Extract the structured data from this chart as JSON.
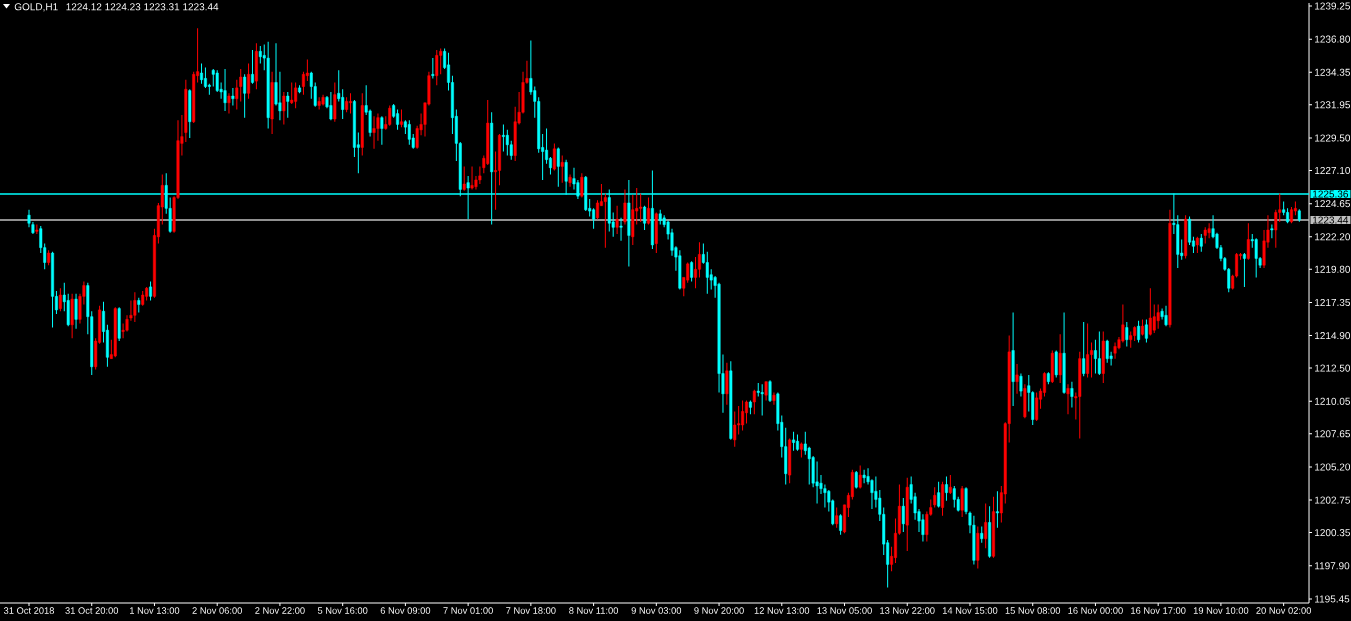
{
  "chart_data": {
    "type": "candlestick",
    "title": "GOLD,H1",
    "subtitle": "1224.12 1224.23 1223.31 1223.44",
    "categories": [
      "31 Oct 2018",
      null,
      null,
      null,
      null,
      null,
      null,
      null,
      null,
      null,
      null,
      null,
      null,
      null,
      null,
      null,
      "31 Oct 20:00",
      null,
      null,
      null,
      null,
      null,
      null,
      null,
      null,
      null,
      null,
      null,
      null,
      null,
      null,
      null,
      "1 Nov 13:00",
      null,
      null,
      null,
      null,
      null,
      null,
      null,
      null,
      null,
      null,
      null,
      null,
      null,
      null,
      null,
      "2 Nov 06:00",
      null,
      null,
      null,
      null,
      null,
      null,
      null,
      null,
      null,
      null,
      null,
      null,
      null,
      null,
      null,
      "2 Nov 22:00",
      null,
      null,
      null,
      null,
      null,
      null,
      null,
      null,
      null,
      null,
      null,
      null,
      null,
      null,
      null,
      "5 Nov 16:00",
      null,
      null,
      null,
      null,
      null,
      null,
      null,
      null,
      null,
      null,
      null,
      null,
      null,
      null,
      null,
      "6 Nov 09:00",
      null,
      null,
      null,
      null,
      null,
      null,
      null,
      null,
      null,
      null,
      null,
      null,
      null,
      null,
      null,
      "7 Nov 01:00",
      null,
      null,
      null,
      null,
      null,
      null,
      null,
      null,
      null,
      null,
      null,
      null,
      null,
      null,
      null,
      "7 Nov 18:00",
      null,
      null,
      null,
      null,
      null,
      null,
      null,
      null,
      null,
      null,
      null,
      null,
      null,
      null,
      null,
      "8 Nov 11:00",
      null,
      null,
      null,
      null,
      null,
      null,
      null,
      null,
      null,
      null,
      null,
      null,
      null,
      null,
      null,
      "9 Nov 03:00",
      null,
      null,
      null,
      null,
      null,
      null,
      null,
      null,
      null,
      null,
      null,
      null,
      null,
      null,
      null,
      "9 Nov 20:00",
      null,
      null,
      null,
      null,
      null,
      null,
      null,
      null,
      null,
      null,
      null,
      null,
      null,
      null,
      null,
      "12 Nov 13:00",
      null,
      null,
      null,
      null,
      null,
      null,
      null,
      null,
      null,
      null,
      null,
      null,
      null,
      null,
      null,
      "13 Nov 05:00",
      null,
      null,
      null,
      null,
      null,
      null,
      null,
      null,
      null,
      null,
      null,
      null,
      null,
      null,
      null,
      "13 Nov 22:00",
      null,
      null,
      null,
      null,
      null,
      null,
      null,
      null,
      null,
      null,
      null,
      null,
      null,
      null,
      null,
      "14 Nov 15:00",
      null,
      null,
      null,
      null,
      null,
      null,
      null,
      null,
      null,
      null,
      null,
      null,
      null,
      null,
      null,
      "15 Nov 08:00",
      null,
      null,
      null,
      null,
      null,
      null,
      null,
      null,
      null,
      null,
      null,
      null,
      null,
      null,
      null,
      "16 Nov 00:00",
      null,
      null,
      null,
      null,
      null,
      null,
      null,
      null,
      null,
      null,
      null,
      null,
      null,
      null,
      null,
      "16 Nov 17:00",
      null,
      null,
      null,
      null,
      null,
      null,
      null,
      null,
      null,
      null,
      null,
      null,
      null,
      null,
      null,
      "19 Nov 10:00",
      null,
      null,
      null,
      null,
      null,
      null,
      null,
      null,
      null,
      null,
      null,
      null,
      null,
      null,
      null,
      "20 Nov 02:00",
      null,
      null,
      null,
      null
    ],
    "ohlc": [
      [
        1223.8,
        1224.2,
        1222.9,
        1223.2
      ],
      [
        1223.1,
        1223.3,
        1222.4,
        1222.5
      ],
      [
        1222.6,
        1223.1,
        1222.4,
        1222.7
      ],
      [
        1222.8,
        1223.0,
        1221.0,
        1221.4
      ],
      [
        1221.4,
        1221.7,
        1219.8,
        1220.3
      ],
      [
        1220.3,
        1221.2,
        1220.1,
        1221.0
      ],
      [
        1221.0,
        1221.1,
        1215.5,
        1217.8
      ],
      [
        1217.8,
        1218.2,
        1216.5,
        1216.8
      ],
      [
        1216.9,
        1218.4,
        1216.7,
        1217.9
      ],
      [
        1217.9,
        1218.8,
        1216.7,
        1217.4
      ],
      [
        1217.5,
        1218.0,
        1215.6,
        1215.7
      ],
      [
        1215.7,
        1218.0,
        1214.7,
        1217.6
      ],
      [
        1217.6,
        1218.0,
        1215.4,
        1216.1
      ],
      [
        1216.1,
        1218.0,
        1215.8,
        1217.8
      ],
      [
        1217.8,
        1218.9,
        1217.2,
        1218.6
      ],
      [
        1218.6,
        1218.8,
        1215.0,
        1216.3
      ],
      [
        1216.3,
        1216.7,
        1212.0,
        1212.6
      ],
      [
        1212.6,
        1214.7,
        1212.4,
        1214.5
      ],
      [
        1214.4,
        1217.1,
        1214.3,
        1216.8
      ],
      [
        1216.7,
        1217.4,
        1214.4,
        1215.2
      ],
      [
        1215.3,
        1215.7,
        1212.6,
        1213.3
      ],
      [
        1213.2,
        1214.6,
        1213.2,
        1213.5
      ],
      [
        1213.4,
        1217.0,
        1213.3,
        1216.9
      ],
      [
        1216.9,
        1217.0,
        1214.5,
        1214.7
      ],
      [
        1215.2,
        1215.8,
        1214.7,
        1215.3
      ],
      [
        1215.3,
        1216.4,
        1215.2,
        1216.1
      ],
      [
        1216.2,
        1217.5,
        1216.0,
        1216.4
      ],
      [
        1216.4,
        1218.1,
        1215.9,
        1217.5
      ],
      [
        1217.5,
        1217.7,
        1216.6,
        1217.2
      ],
      [
        1217.2,
        1218.2,
        1217.1,
        1217.9
      ],
      [
        1217.8,
        1218.5,
        1217.5,
        1218.4
      ],
      [
        1218.5,
        1218.9,
        1217.5,
        1217.8
      ],
      [
        1217.8,
        1222.8,
        1217.7,
        1222.3
      ],
      [
        1222.2,
        1224.7,
        1221.7,
        1224.5
      ],
      [
        1224.4,
        1226.8,
        1223.1,
        1226.0
      ],
      [
        1226.0,
        1226.9,
        1223.9,
        1224.3
      ],
      [
        1224.3,
        1225.1,
        1222.5,
        1222.6
      ],
      [
        1222.6,
        1225.2,
        1222.5,
        1225.1
      ],
      [
        1225.1,
        1230.8,
        1225.0,
        1229.3
      ],
      [
        1229.1,
        1231.2,
        1228.2,
        1229.6
      ],
      [
        1229.9,
        1233.8,
        1229.2,
        1233.1
      ],
      [
        1233.0,
        1233.1,
        1229.5,
        1230.7
      ],
      [
        1230.7,
        1234.4,
        1230.6,
        1234.2
      ],
      [
        1234.1,
        1237.6,
        1233.6,
        1234.4
      ],
      [
        1234.3,
        1235.0,
        1233.5,
        1233.8
      ],
      [
        1233.9,
        1234.7,
        1233.2,
        1233.3
      ],
      [
        1233.4,
        1233.5,
        1232.7,
        1233.3
      ],
      [
        1234.5,
        1234.6,
        1233.3,
        1234.2
      ],
      [
        1234.3,
        1234.5,
        1232.9,
        1233.0
      ],
      [
        1233.1,
        1233.6,
        1232.4,
        1232.9
      ],
      [
        1233.0,
        1234.6,
        1231.5,
        1232.1
      ],
      [
        1232.1,
        1232.8,
        1231.3,
        1232.6
      ],
      [
        1232.6,
        1233.2,
        1231.9,
        1232.4
      ],
      [
        1232.4,
        1233.8,
        1231.6,
        1233.2
      ],
      [
        1233.3,
        1234.6,
        1232.2,
        1234.0
      ],
      [
        1234.0,
        1234.2,
        1231.0,
        1232.8
      ],
      [
        1232.8,
        1235.0,
        1232.4,
        1234.2
      ],
      [
        1234.2,
        1236.0,
        1233.5,
        1233.6
      ],
      [
        1233.7,
        1236.5,
        1233.1,
        1235.9
      ],
      [
        1235.9,
        1236.3,
        1235.0,
        1235.5
      ],
      [
        1235.6,
        1236.4,
        1234.5,
        1235.4
      ],
      [
        1235.4,
        1236.6,
        1230.2,
        1231.0
      ],
      [
        1230.9,
        1234.4,
        1229.8,
        1233.6
      ],
      [
        1233.6,
        1236.5,
        1231.9,
        1232.0
      ],
      [
        1232.1,
        1234.4,
        1230.8,
        1231.5
      ],
      [
        1231.5,
        1232.9,
        1230.5,
        1232.6
      ],
      [
        1232.6,
        1232.9,
        1231.0,
        1232.2
      ],
      [
        1232.1,
        1233.6,
        1232.0,
        1232.3
      ],
      [
        1232.2,
        1233.6,
        1231.7,
        1233.2
      ],
      [
        1233.2,
        1233.4,
        1232.8,
        1232.9
      ],
      [
        1233.3,
        1234.4,
        1232.7,
        1234.2
      ],
      [
        1234.1,
        1235.3,
        1233.7,
        1234.3
      ],
      [
        1234.3,
        1234.4,
        1232.4,
        1233.3
      ],
      [
        1233.3,
        1233.6,
        1231.8,
        1231.9
      ],
      [
        1231.9,
        1232.5,
        1231.6,
        1232.2
      ],
      [
        1232.0,
        1232.7,
        1231.9,
        1232.5
      ],
      [
        1232.5,
        1232.6,
        1231.7,
        1231.8
      ],
      [
        1231.9,
        1232.9,
        1230.8,
        1230.9
      ],
      [
        1230.9,
        1233.6,
        1230.7,
        1232.7
      ],
      [
        1232.8,
        1234.5,
        1232.2,
        1232.4
      ],
      [
        1232.5,
        1233.1,
        1230.9,
        1231.6
      ],
      [
        1231.6,
        1232.5,
        1231.4,
        1232.2
      ],
      [
        1232.1,
        1232.8,
        1231.3,
        1232.2
      ],
      [
        1232.2,
        1232.3,
        1228.1,
        1228.8
      ],
      [
        1229.0,
        1229.9,
        1226.9,
        1228.8
      ],
      [
        1228.8,
        1232.8,
        1228.2,
        1231.9
      ],
      [
        1231.9,
        1233.4,
        1231.2,
        1231.4
      ],
      [
        1231.5,
        1231.6,
        1229.6,
        1229.9
      ],
      [
        1229.9,
        1231.1,
        1228.7,
        1230.2
      ],
      [
        1230.2,
        1231.3,
        1229.3,
        1231.0
      ],
      [
        1231.0,
        1231.1,
        1229.0,
        1230.2
      ],
      [
        1230.2,
        1231.1,
        1230.1,
        1230.5
      ],
      [
        1230.5,
        1231.9,
        1230.4,
        1231.7
      ],
      [
        1231.9,
        1232.0,
        1231.0,
        1231.1
      ],
      [
        1231.3,
        1231.6,
        1230.1,
        1230.5
      ],
      [
        1230.5,
        1231.6,
        1230.3,
        1230.7
      ],
      [
        1230.7,
        1230.8,
        1229.8,
        1230.3
      ],
      [
        1230.5,
        1230.8,
        1229.0,
        1229.4
      ],
      [
        1229.5,
        1229.8,
        1228.7,
        1228.8
      ],
      [
        1228.8,
        1230.4,
        1228.7,
        1230.2
      ],
      [
        1230.1,
        1231.3,
        1229.7,
        1230.5
      ],
      [
        1230.5,
        1232.1,
        1229.6,
        1232.1
      ],
      [
        1232.0,
        1234.4,
        1231.9,
        1234.1
      ],
      [
        1234.2,
        1235.4,
        1233.9,
        1234.1
      ],
      [
        1234.1,
        1236.0,
        1233.4,
        1235.6
      ],
      [
        1235.6,
        1236.1,
        1234.2,
        1235.9
      ],
      [
        1235.9,
        1236.1,
        1234.6,
        1234.7
      ],
      [
        1234.9,
        1235.8,
        1233.0,
        1233.6
      ],
      [
        1233.6,
        1234.1,
        1229.8,
        1231.0
      ],
      [
        1231.1,
        1231.6,
        1227.8,
        1229.1
      ],
      [
        1229.1,
        1229.2,
        1225.2,
        1225.7
      ],
      [
        1225.7,
        1227.4,
        1225.6,
        1226.1
      ],
      [
        1226.2,
        1226.7,
        1223.5,
        1225.8
      ],
      [
        1225.8,
        1227.4,
        1225.7,
        1226.0
      ],
      [
        1225.9,
        1226.7,
        1225.7,
        1226.4
      ],
      [
        1226.4,
        1227.4,
        1226.1,
        1226.7
      ],
      [
        1227.3,
        1228.2,
        1226.9,
        1228.0
      ],
      [
        1227.6,
        1232.3,
        1227.5,
        1230.6
      ],
      [
        1230.6,
        1231.4,
        1223.1,
        1227.0
      ],
      [
        1227.0,
        1228.5,
        1224.2,
        1227.1
      ],
      [
        1227.1,
        1229.8,
        1226.0,
        1229.7
      ],
      [
        1229.7,
        1230.5,
        1228.5,
        1229.6
      ],
      [
        1229.7,
        1230.1,
        1228.2,
        1229.0
      ],
      [
        1229.0,
        1229.3,
        1227.9,
        1228.2
      ],
      [
        1228.2,
        1231.8,
        1227.8,
        1230.7
      ],
      [
        1230.6,
        1232.9,
        1230.5,
        1231.4
      ],
      [
        1231.4,
        1234.4,
        1231.3,
        1233.6
      ],
      [
        1233.6,
        1235.2,
        1233.5,
        1233.9
      ],
      [
        1233.9,
        1236.7,
        1232.7,
        1232.9
      ],
      [
        1233.0,
        1233.3,
        1231.0,
        1232.2
      ],
      [
        1232.2,
        1232.5,
        1228.4,
        1228.7
      ],
      [
        1228.8,
        1229.8,
        1226.4,
        1228.5
      ],
      [
        1228.6,
        1230.2,
        1227.6,
        1227.9
      ],
      [
        1228.0,
        1228.1,
        1226.8,
        1227.3
      ],
      [
        1227.2,
        1229.1,
        1227.1,
        1228.7
      ],
      [
        1228.7,
        1228.8,
        1225.9,
        1227.4
      ],
      [
        1227.4,
        1228.2,
        1226.2,
        1227.7
      ],
      [
        1227.7,
        1227.9,
        1225.3,
        1226.3
      ],
      [
        1226.2,
        1226.8,
        1225.9,
        1226.6
      ],
      [
        1226.5,
        1227.3,
        1225.7,
        1226.1
      ],
      [
        1226.2,
        1226.4,
        1225.0,
        1225.2
      ],
      [
        1225.2,
        1226.9,
        1225.1,
        1226.6
      ],
      [
        1226.6,
        1226.7,
        1224.1,
        1224.2
      ],
      [
        1224.3,
        1225.0,
        1223.7,
        1224.1
      ],
      [
        1224.2,
        1224.3,
        1222.8,
        1223.5
      ],
      [
        1223.6,
        1224.9,
        1223.5,
        1224.7
      ],
      [
        1224.5,
        1226.1,
        1224.5,
        1224.8
      ],
      [
        1224.8,
        1225.4,
        1221.4,
        1225.1
      ],
      [
        1225.1,
        1225.7,
        1222.6,
        1223.2
      ],
      [
        1223.3,
        1224.0,
        1222.2,
        1222.9
      ],
      [
        1222.9,
        1224.5,
        1222.4,
        1223.5
      ],
      [
        1223.0,
        1223.6,
        1221.9,
        1222.9
      ],
      [
        1223.3,
        1225.7,
        1223.1,
        1224.7
      ],
      [
        1224.7,
        1226.4,
        1220.0,
        1222.3
      ],
      [
        1222.2,
        1225.3,
        1221.6,
        1224.2
      ],
      [
        1224.1,
        1225.8,
        1223.1,
        1224.3
      ],
      [
        1224.3,
        1225.4,
        1223.3,
        1224.4
      ],
      [
        1224.4,
        1224.5,
        1222.7,
        1223.2
      ],
      [
        1223.2,
        1225.1,
        1223.1,
        1224.3
      ],
      [
        1224.3,
        1227.1,
        1221.3,
        1221.6
      ],
      [
        1221.7,
        1224.0,
        1221.0,
        1223.9
      ],
      [
        1223.9,
        1224.2,
        1223.1,
        1223.4
      ],
      [
        1223.6,
        1223.8,
        1222.9,
        1223.1
      ],
      [
        1223.3,
        1223.4,
        1222.0,
        1222.4
      ],
      [
        1222.5,
        1222.8,
        1220.8,
        1221.2
      ],
      [
        1221.4,
        1221.5,
        1219.7,
        1220.7
      ],
      [
        1220.8,
        1221.2,
        1218.3,
        1218.4
      ],
      [
        1218.4,
        1219.2,
        1217.8,
        1219.2
      ],
      [
        1219.0,
        1220.3,
        1218.8,
        1220.2
      ],
      [
        1220.3,
        1220.4,
        1218.9,
        1219.2
      ],
      [
        1219.2,
        1220.7,
        1218.4,
        1219.8
      ],
      [
        1219.8,
        1221.8,
        1219.2,
        1220.9
      ],
      [
        1220.9,
        1221.7,
        1220.2,
        1220.3
      ],
      [
        1220.3,
        1221.1,
        1218.0,
        1219.2
      ],
      [
        1219.4,
        1219.8,
        1218.3,
        1219.0
      ],
      [
        1219.2,
        1219.3,
        1217.7,
        1218.6
      ],
      [
        1218.7,
        1218.8,
        1210.7,
        1212.1
      ],
      [
        1212.1,
        1213.5,
        1209.2,
        1210.6
      ],
      [
        1210.6,
        1212.9,
        1209.8,
        1212.3
      ],
      [
        1212.3,
        1213.0,
        1207.2,
        1207.3
      ],
      [
        1207.2,
        1209.3,
        1206.7,
        1208.3
      ],
      [
        1208.3,
        1209.7,
        1207.6,
        1208.4
      ],
      [
        1208.3,
        1210.1,
        1207.9,
        1209.3
      ],
      [
        1209.2,
        1210.1,
        1208.4,
        1210.0
      ],
      [
        1210.0,
        1210.1,
        1209.1,
        1209.6
      ],
      [
        1210.0,
        1210.9,
        1209.1,
        1210.8
      ],
      [
        1210.8,
        1211.4,
        1210.4,
        1210.7
      ],
      [
        1210.7,
        1211.3,
        1209.0,
        1210.6
      ],
      [
        1210.5,
        1211.5,
        1210.1,
        1211.5
      ],
      [
        1211.5,
        1211.6,
        1210.0,
        1210.1
      ],
      [
        1210.1,
        1210.7,
        1209.8,
        1210.5
      ],
      [
        1210.6,
        1210.7,
        1207.9,
        1208.4
      ],
      [
        1208.5,
        1209.0,
        1205.9,
        1206.7
      ],
      [
        1206.7,
        1208.1,
        1203.9,
        1204.7
      ],
      [
        1204.6,
        1207.3,
        1204.0,
        1207.2
      ],
      [
        1207.2,
        1207.8,
        1206.4,
        1207.0
      ],
      [
        1207.1,
        1207.6,
        1206.4,
        1206.5
      ],
      [
        1206.5,
        1207.0,
        1205.9,
        1206.9
      ],
      [
        1206.9,
        1207.8,
        1206.1,
        1206.4
      ],
      [
        1206.6,
        1206.7,
        1203.9,
        1205.8
      ],
      [
        1205.9,
        1206.0,
        1203.7,
        1204.0
      ],
      [
        1204.1,
        1205.6,
        1202.5,
        1203.8
      ],
      [
        1204.0,
        1204.6,
        1203.2,
        1203.6
      ],
      [
        1203.6,
        1203.9,
        1202.2,
        1203.3
      ],
      [
        1203.4,
        1203.5,
        1201.9,
        1202.6
      ],
      [
        1202.7,
        1202.8,
        1200.9,
        1201.0
      ],
      [
        1201.0,
        1202.2,
        1200.7,
        1201.6
      ],
      [
        1201.6,
        1201.7,
        1200.2,
        1200.5
      ],
      [
        1200.4,
        1202.4,
        1200.3,
        1202.4
      ],
      [
        1202.2,
        1203.3,
        1201.5,
        1203.1
      ],
      [
        1203.0,
        1205.0,
        1202.8,
        1204.8
      ],
      [
        1204.8,
        1204.9,
        1203.6,
        1203.7
      ],
      [
        1203.7,
        1205.3,
        1203.6,
        1204.6
      ],
      [
        1204.6,
        1205.0,
        1204.0,
        1204.4
      ],
      [
        1204.5,
        1205.1,
        1203.9,
        1204.1
      ],
      [
        1204.2,
        1204.3,
        1202.1,
        1203.3
      ],
      [
        1203.4,
        1204.5,
        1202.2,
        1202.8
      ],
      [
        1202.9,
        1203.5,
        1201.2,
        1201.7
      ],
      [
        1201.7,
        1202.2,
        1198.7,
        1199.5
      ],
      [
        1199.6,
        1199.8,
        1196.3,
        1198.0
      ],
      [
        1198.0,
        1199.3,
        1197.5,
        1198.6
      ],
      [
        1198.5,
        1201.4,
        1198.1,
        1200.3
      ],
      [
        1200.3,
        1203.9,
        1200.2,
        1202.3
      ],
      [
        1202.3,
        1202.9,
        1200.4,
        1201.0
      ],
      [
        1200.9,
        1204.4,
        1199.0,
        1203.7
      ],
      [
        1203.9,
        1204.5,
        1202.5,
        1202.8
      ],
      [
        1203.0,
        1203.3,
        1201.3,
        1201.8
      ],
      [
        1201.9,
        1202.1,
        1200.4,
        1201.2
      ],
      [
        1201.3,
        1201.7,
        1199.7,
        1200.2
      ],
      [
        1200.2,
        1201.9,
        1199.7,
        1201.7
      ],
      [
        1201.7,
        1202.8,
        1201.6,
        1202.2
      ],
      [
        1202.4,
        1203.7,
        1202.2,
        1203.1
      ],
      [
        1203.3,
        1204.1,
        1202.2,
        1202.3
      ],
      [
        1202.2,
        1204.1,
        1201.6,
        1203.9
      ],
      [
        1203.9,
        1204.5,
        1202.7,
        1203.3
      ],
      [
        1203.3,
        1204.6,
        1203.2,
        1203.7
      ],
      [
        1203.6,
        1203.8,
        1202.2,
        1202.8
      ],
      [
        1202.8,
        1203.0,
        1201.9,
        1202.0
      ],
      [
        1202.0,
        1203.8,
        1201.5,
        1203.6
      ],
      [
        1203.6,
        1203.7,
        1201.7,
        1201.9
      ],
      [
        1201.8,
        1201.9,
        1200.3,
        1200.9
      ],
      [
        1200.9,
        1201.6,
        1198.0,
        1198.3
      ],
      [
        1198.3,
        1200.8,
        1197.7,
        1200.3
      ],
      [
        1200.3,
        1200.8,
        1199.6,
        1199.9
      ],
      [
        1199.9,
        1202.5,
        1199.2,
        1201.1
      ],
      [
        1201.1,
        1202.3,
        1198.5,
        1198.6
      ],
      [
        1198.6,
        1203.0,
        1198.5,
        1201.9
      ],
      [
        1201.9,
        1203.4,
        1200.7,
        1201.8
      ],
      [
        1201.8,
        1203.8,
        1201.1,
        1203.3
      ],
      [
        1203.2,
        1208.5,
        1202.5,
        1208.4
      ],
      [
        1208.4,
        1214.9,
        1207.0,
        1213.7
      ],
      [
        1213.8,
        1216.6,
        1209.7,
        1211.5
      ],
      [
        1211.5,
        1212.8,
        1210.6,
        1212.0
      ],
      [
        1211.9,
        1212.1,
        1210.4,
        1210.8
      ],
      [
        1208.9,
        1211.3,
        1208.8,
        1211.0
      ],
      [
        1211.2,
        1212.0,
        1209.3,
        1210.7
      ],
      [
        1210.7,
        1210.8,
        1208.3,
        1208.7
      ],
      [
        1208.7,
        1210.7,
        1208.6,
        1210.3
      ],
      [
        1210.2,
        1211.0,
        1209.5,
        1210.8
      ],
      [
        1210.7,
        1212.2,
        1210.4,
        1212.1
      ],
      [
        1212.1,
        1212.2,
        1211.3,
        1211.5
      ],
      [
        1211.5,
        1213.8,
        1211.4,
        1213.6
      ],
      [
        1213.7,
        1213.8,
        1211.8,
        1212.0
      ],
      [
        1212.0,
        1215.0,
        1211.4,
        1213.6
      ],
      [
        1213.6,
        1216.6,
        1210.6,
        1210.7
      ],
      [
        1210.6,
        1211.3,
        1209.1,
        1211.0
      ],
      [
        1211.0,
        1211.5,
        1209.6,
        1210.4
      ],
      [
        1210.3,
        1210.7,
        1208.7,
        1210.4
      ],
      [
        1210.4,
        1213.7,
        1207.3,
        1213.2
      ],
      [
        1213.2,
        1215.9,
        1211.9,
        1212.1
      ],
      [
        1212.1,
        1215.8,
        1211.8,
        1213.5
      ],
      [
        1213.5,
        1214.4,
        1211.8,
        1213.8
      ],
      [
        1213.8,
        1214.6,
        1212.1,
        1213.2
      ],
      [
        1213.2,
        1215.2,
        1212.0,
        1212.1
      ],
      [
        1212.1,
        1215.2,
        1211.4,
        1214.5
      ],
      [
        1214.5,
        1214.6,
        1212.9,
        1213.2
      ],
      [
        1213.4,
        1213.7,
        1212.7,
        1213.2
      ],
      [
        1213.6,
        1214.4,
        1213.2,
        1214.1
      ],
      [
        1214.0,
        1214.8,
        1213.9,
        1214.6
      ],
      [
        1214.5,
        1217.2,
        1214.4,
        1215.7
      ],
      [
        1215.5,
        1215.9,
        1214.1,
        1214.6
      ],
      [
        1214.6,
        1215.2,
        1214.0,
        1214.9
      ],
      [
        1214.9,
        1215.6,
        1214.5,
        1215.5
      ],
      [
        1215.6,
        1216.0,
        1214.4,
        1214.6
      ],
      [
        1215.0,
        1216.1,
        1214.9,
        1215.6
      ],
      [
        1215.7,
        1216.1,
        1214.4,
        1214.7
      ],
      [
        1215.0,
        1218.4,
        1214.9,
        1216.2
      ],
      [
        1215.3,
        1217.2,
        1215.1,
        1216.3
      ],
      [
        1216.0,
        1217.2,
        1215.4,
        1216.6
      ],
      [
        1216.7,
        1216.9,
        1216.1,
        1216.3
      ],
      [
        1216.4,
        1217.1,
        1215.6,
        1215.7
      ],
      [
        1215.7,
        1224.2,
        1215.5,
        1223.2
      ],
      [
        1223.2,
        1225.4,
        1222.4,
        1223.1
      ],
      [
        1223.1,
        1223.8,
        1219.9,
        1220.9
      ],
      [
        1221.0,
        1222.0,
        1220.5,
        1220.8
      ],
      [
        1220.8,
        1223.8,
        1220.6,
        1223.5
      ],
      [
        1223.5,
        1223.7,
        1221.6,
        1221.8
      ],
      [
        1221.9,
        1222.2,
        1221.0,
        1221.5
      ],
      [
        1221.6,
        1222.2,
        1221.0,
        1222.1
      ],
      [
        1222.1,
        1222.4,
        1221.1,
        1221.5
      ],
      [
        1222.3,
        1222.9,
        1221.7,
        1222.7
      ],
      [
        1222.5,
        1223.2,
        1222.1,
        1222.8
      ],
      [
        1222.8,
        1223.8,
        1222.1,
        1222.2
      ],
      [
        1222.4,
        1222.5,
        1221.3,
        1221.4
      ],
      [
        1221.4,
        1221.6,
        1220.4,
        1220.6
      ],
      [
        1220.6,
        1220.7,
        1219.7,
        1219.8
      ],
      [
        1219.8,
        1219.9,
        1218.1,
        1218.4
      ],
      [
        1218.4,
        1219.4,
        1218.3,
        1219.3
      ],
      [
        1219.3,
        1221.0,
        1219.2,
        1220.9
      ],
      [
        1220.8,
        1221.0,
        1220.5,
        1220.9
      ],
      [
        1220.9,
        1221.0,
        1218.5,
        1220.6
      ],
      [
        1220.6,
        1223.2,
        1220.5,
        1222.0
      ],
      [
        1222.0,
        1222.4,
        1221.4,
        1221.9
      ],
      [
        1222.0,
        1222.1,
        1219.2,
        1220.6
      ],
      [
        1220.6,
        1220.7,
        1219.9,
        1220.1
      ],
      [
        1220.1,
        1222.7,
        1219.9,
        1221.9
      ],
      [
        1221.8,
        1223.8,
        1221.4,
        1222.7
      ],
      [
        1222.8,
        1223.1,
        1222.1,
        1222.7
      ],
      [
        1222.7,
        1224.2,
        1221.4,
        1224.0
      ],
      [
        1224.0,
        1225.4,
        1223.3,
        1224.2
      ],
      [
        1224.2,
        1224.8,
        1223.8,
        1224.0
      ],
      [
        1224.0,
        1224.3,
        1223.2,
        1223.3
      ],
      [
        1223.3,
        1224.4,
        1223.2,
        1224.2
      ],
      [
        1224.1,
        1224.8,
        1223.8,
        1224.3
      ],
      [
        1224.12,
        1224.23,
        1223.31,
        1223.44
      ]
    ],
    "colors": [
      "#00ffff",
      "#00ffff",
      "#ff0000",
      "#00ffff",
      "#00ffff",
      "#ff0000",
      "#00ffff",
      "#00ffff",
      "#ff0000",
      "#00ffff",
      "#00ffff",
      "#ff0000",
      "#00ffff",
      "#ff0000",
      "#ff0000",
      "#00ffff",
      "#00ffff",
      "#ff0000",
      "#ff0000",
      "#00ffff",
      "#00ffff",
      "#ff0000",
      "#ff0000",
      "#00ffff",
      "#ff0000",
      "#ff0000",
      "#ff0000",
      "#ff0000",
      "#00ffff",
      "#ff0000",
      "#ff0000",
      "#00ffff",
      "#ff0000",
      "#ff0000",
      "#ff0000",
      "#00ffff",
      "#00ffff",
      "#ff0000",
      "#ff0000",
      "#ff0000",
      "#ff0000",
      "#00ffff",
      "#ff0000",
      "#ff0000",
      "#00ffff",
      "#00ffff",
      "#00ffff",
      "#00ffff",
      "#00ffff",
      "#00ffff",
      "#00ffff",
      "#ff0000",
      "#00ffff",
      "#ff0000",
      "#ff0000",
      "#00ffff",
      "#ff0000",
      "#00ffff",
      "#ff0000",
      "#00ffff",
      "#00ffff",
      "#00ffff",
      "#ff0000",
      "#00ffff",
      "#00ffff",
      "#ff0000",
      "#00ffff",
      "#ff0000",
      "#ff0000",
      "#00ffff",
      "#ff0000",
      "#ff0000",
      "#00ffff",
      "#00ffff",
      "#ff0000",
      "#ff0000",
      "#00ffff",
      "#00ffff",
      "#ff0000",
      "#00ffff",
      "#00ffff",
      "#ff0000",
      "#ff0000",
      "#00ffff",
      "#00ffff",
      "#ff0000",
      "#00ffff",
      "#00ffff",
      "#ff0000",
      "#ff0000",
      "#00ffff",
      "#ff0000",
      "#ff0000",
      "#00ffff",
      "#00ffff",
      "#ff0000",
      "#00ffff",
      "#00ffff",
      "#00ffff",
      "#ff0000",
      "#ff0000",
      "#ff0000",
      "#ff0000",
      "#00ffff",
      "#ff0000",
      "#ff0000",
      "#00ffff",
      "#00ffff",
      "#00ffff",
      "#00ffff",
      "#00ffff",
      "#ff0000",
      "#00ffff",
      "#ff0000",
      "#ff0000",
      "#ff0000",
      "#ff0000",
      "#ff0000",
      "#00ffff",
      "#ff0000",
      "#ff0000",
      "#00ffff",
      "#00ffff",
      "#00ffff",
      "#ff0000",
      "#ff0000",
      "#ff0000",
      "#ff0000",
      "#00ffff",
      "#00ffff",
      "#00ffff",
      "#00ffff",
      "#00ffff",
      "#00ffff",
      "#ff0000",
      "#00ffff",
      "#ff0000",
      "#00ffff",
      "#ff0000",
      "#00ffff",
      "#00ffff",
      "#ff0000",
      "#00ffff",
      "#00ffff",
      "#00ffff",
      "#ff0000",
      "#ff0000",
      "#ff0000",
      "#00ffff",
      "#00ffff",
      "#ff0000",
      "#00ffff",
      "#ff0000",
      "#00ffff",
      "#ff0000",
      "#ff0000",
      "#ff0000",
      "#00ffff",
      "#ff0000",
      "#00ffff",
      "#ff0000",
      "#00ffff",
      "#00ffff",
      "#00ffff",
      "#00ffff",
      "#00ffff",
      "#00ffff",
      "#ff0000",
      "#ff0000",
      "#00ffff",
      "#ff0000",
      "#ff0000",
      "#00ffff",
      "#00ffff",
      "#00ffff",
      "#00ffff",
      "#00ffff",
      "#00ffff",
      "#ff0000",
      "#00ffff",
      "#ff0000",
      "#ff0000",
      "#ff0000",
      "#ff0000",
      "#00ffff",
      "#ff0000",
      "#00ffff",
      "#00ffff",
      "#ff0000",
      "#00ffff",
      "#ff0000",
      "#00ffff",
      "#00ffff",
      "#00ffff",
      "#ff0000",
      "#00ffff",
      "#00ffff",
      "#ff0000",
      "#00ffff",
      "#00ffff",
      "#00ffff",
      "#00ffff",
      "#00ffff",
      "#00ffff",
      "#00ffff",
      "#00ffff",
      "#ff0000",
      "#00ffff",
      "#ff0000",
      "#ff0000",
      "#ff0000",
      "#00ffff",
      "#ff0000",
      "#00ffff",
      "#00ffff",
      "#00ffff",
      "#00ffff",
      "#00ffff",
      "#00ffff",
      "#00ffff",
      "#ff0000",
      "#ff0000",
      "#ff0000",
      "#00ffff",
      "#ff0000",
      "#00ffff",
      "#00ffff",
      "#00ffff",
      "#00ffff",
      "#ff0000",
      "#ff0000",
      "#ff0000",
      "#00ffff",
      "#ff0000",
      "#00ffff",
      "#ff0000",
      "#00ffff",
      "#00ffff",
      "#ff0000",
      "#00ffff",
      "#00ffff",
      "#00ffff",
      "#ff0000",
      "#00ffff",
      "#ff0000",
      "#00ffff",
      "#ff0000",
      "#00ffff",
      "#ff0000",
      "#ff0000",
      "#ff0000",
      "#00ffff",
      "#ff0000",
      "#00ffff",
      "#ff0000",
      "#00ffff",
      "#00ffff",
      "#ff0000",
      "#ff0000",
      "#ff0000",
      "#00ffff",
      "#ff0000",
      "#00ffff",
      "#ff0000",
      "#00ffff",
      "#ff0000",
      "#00ffff",
      "#ff0000",
      "#ff0000",
      "#00ffff",
      "#ff0000",
      "#ff0000",
      "#00ffff",
      "#00ffff",
      "#ff0000",
      "#00ffff",
      "#00ffff",
      "#ff0000",
      "#ff0000",
      "#ff0000",
      "#00ffff",
      "#ff0000",
      "#ff0000",
      "#00ffff",
      "#ff0000",
      "#00ffff",
      "#ff0000",
      "#ff0000",
      "#ff0000",
      "#00ffff",
      "#00ffff",
      "#ff0000",
      "#00ffff",
      "#00ffff",
      "#00ffff",
      "#ff0000",
      "#00ffff",
      "#00ffff",
      "#ff0000",
      "#00ffff",
      "#ff0000",
      "#ff0000",
      "#00ffff",
      "#00ffff",
      "#00ffff",
      "#00ffff",
      "#00ffff",
      "#ff0000",
      "#ff0000",
      "#ff0000",
      "#00ffff",
      "#ff0000",
      "#00ffff",
      "#00ffff",
      "#00ffff",
      "#ff0000",
      "#ff0000",
      "#00ffff",
      "#ff0000",
      "#ff0000",
      "#00ffff",
      "#00ffff",
      "#ff0000",
      "#ff0000",
      "#00ffff"
    ],
    "ylim": [
      1195.15,
      1239.47
    ],
    "yticks": [
      {
        "value": 1239.25,
        "label": "1239.25"
      },
      {
        "value": 1236.8,
        "label": "1236.80"
      },
      {
        "value": 1234.35,
        "label": "1234.35"
      },
      {
        "value": 1231.95,
        "label": "1231.95"
      },
      {
        "value": 1229.5,
        "label": "1229.50"
      },
      {
        "value": 1227.1,
        "label": "1227.10"
      },
      {
        "value": 1224.65,
        "label": "1224.65"
      },
      {
        "value": 1222.2,
        "label": "1222.20"
      },
      {
        "value": 1219.8,
        "label": "1219.80"
      },
      {
        "value": 1217.35,
        "label": "1217.35"
      },
      {
        "value": 1214.9,
        "label": "1214.90"
      },
      {
        "value": 1212.5,
        "label": "1212.50"
      },
      {
        "value": 1210.05,
        "label": "1210.05"
      },
      {
        "value": 1207.65,
        "label": "1207.65"
      },
      {
        "value": 1205.2,
        "label": "1205.20"
      },
      {
        "value": 1202.75,
        "label": "1202.75"
      },
      {
        "value": 1200.35,
        "label": "1200.35"
      },
      {
        "value": 1197.9,
        "label": "1197.90"
      },
      {
        "value": 1195.45,
        "label": "1195.45"
      }
    ],
    "ref_lines": [
      {
        "axis": "y",
        "value": 1225.36,
        "label": "1225.36",
        "color": "#00ffff"
      },
      {
        "axis": "y",
        "value": 1223.44,
        "label": "1223.44",
        "color": "#c0c0c0"
      }
    ]
  }
}
